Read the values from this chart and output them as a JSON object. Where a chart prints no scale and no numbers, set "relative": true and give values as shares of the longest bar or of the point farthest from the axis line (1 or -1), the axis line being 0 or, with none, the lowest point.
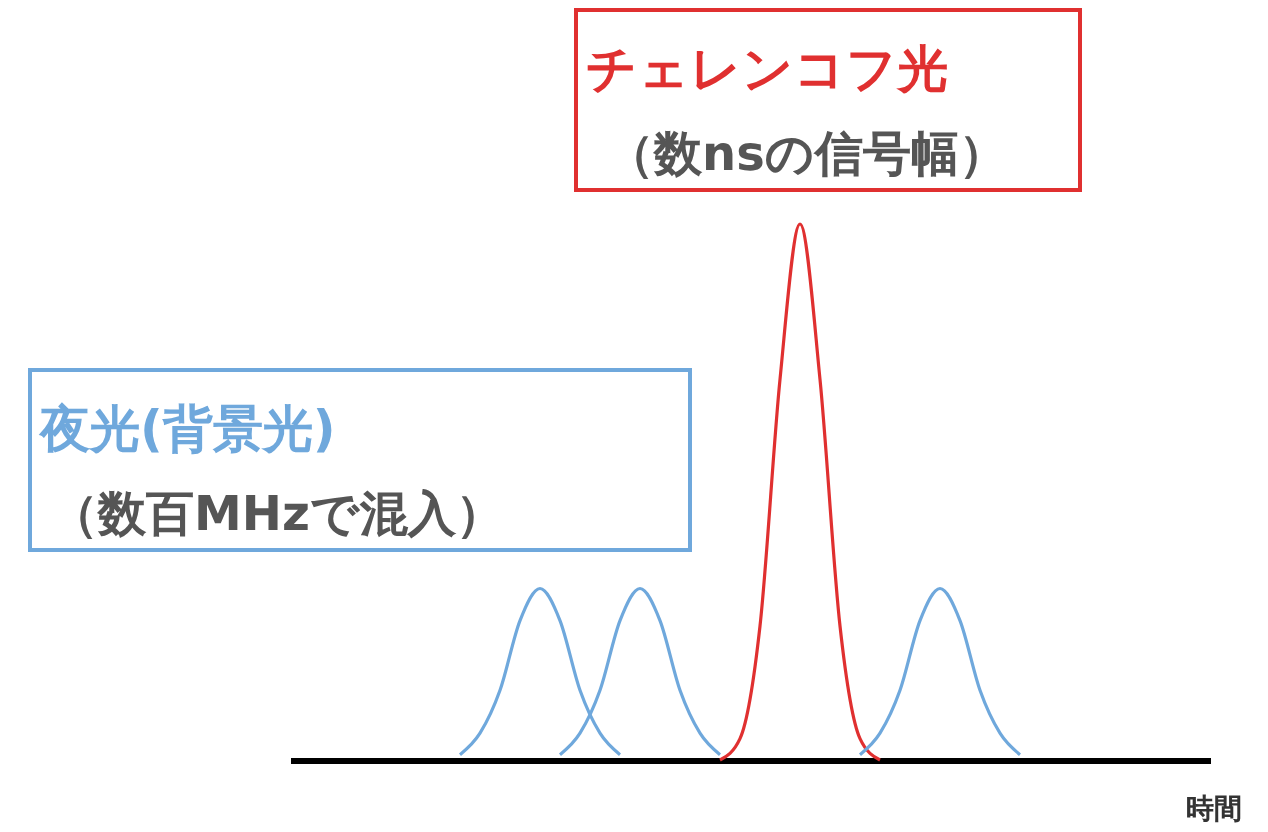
{
  "chart_data": {
    "type": "line",
    "relative": true,
    "tick_labels": false,
    "xlabel": "時間",
    "categories": [
      null,
      null,
      null,
      null,
      null,
      null,
      null,
      null,
      null,
      null,
      null,
      null,
      null,
      null,
      null,
      null,
      null,
      null,
      null,
      null,
      null,
      null,
      null,
      null,
      null,
      null,
      null,
      null,
      null,
      null,
      null,
      null,
      null,
      null,
      null,
      null,
      null,
      null,
      null,
      null,
      null,
      null,
      null,
      null,
      null,
      null
    ],
    "series": [
      {
        "name": "夜光(背景光)",
        "color": "#6fa8dc",
        "values": [
          null,
          null,
          null,
          null,
          null,
          null,
          null,
          null,
          0.01,
          0.05,
          0.13,
          0.26,
          0.32,
          0.26,
          0.13,
          0.05,
          0.01,
          null,
          null,
          null,
          null,
          null,
          null,
          null,
          null,
          null,
          null,
          null,
          null,
          null,
          null,
          null,
          null,
          null,
          null,
          null,
          null,
          null,
          null,
          null,
          null,
          null,
          null,
          null,
          null,
          null
        ]
      },
      {
        "color": "#6fa8dc",
        "values": [
          null,
          null,
          null,
          null,
          null,
          null,
          null,
          null,
          null,
          null,
          null,
          null,
          null,
          0.01,
          0.05,
          0.13,
          0.26,
          0.32,
          0.26,
          0.13,
          0.05,
          0.01,
          null,
          null,
          null,
          null,
          null,
          null,
          null,
          null,
          null,
          null,
          null,
          null,
          null,
          null,
          null,
          null,
          null,
          null,
          null,
          null,
          null,
          null,
          null,
          null
        ]
      },
      {
        "name": "チェレンコフ光",
        "color": "#e03030",
        "values": [
          null,
          null,
          null,
          null,
          null,
          null,
          null,
          null,
          null,
          null,
          null,
          null,
          null,
          null,
          null,
          null,
          null,
          null,
          null,
          null,
          null,
          0,
          0.04,
          0.25,
          0.71,
          1,
          0.71,
          0.25,
          0.04,
          0,
          null,
          null,
          null,
          null,
          null,
          null,
          null,
          null,
          null,
          null,
          null,
          null,
          null,
          null,
          null,
          null
        ]
      },
      {
        "color": "#6fa8dc",
        "values": [
          null,
          null,
          null,
          null,
          null,
          null,
          null,
          null,
          null,
          null,
          null,
          null,
          null,
          null,
          null,
          null,
          null,
          null,
          null,
          null,
          null,
          null,
          null,
          null,
          null,
          null,
          null,
          null,
          0.01,
          0.05,
          0.13,
          0.26,
          0.32,
          0.26,
          0.13,
          0.05,
          0.01,
          null,
          null,
          null,
          null,
          null,
          null,
          null,
          null,
          null
        ]
      }
    ],
    "annotations": [
      "（数百MHzで混入）",
      "（数nsの信号幅）"
    ]
  }
}
